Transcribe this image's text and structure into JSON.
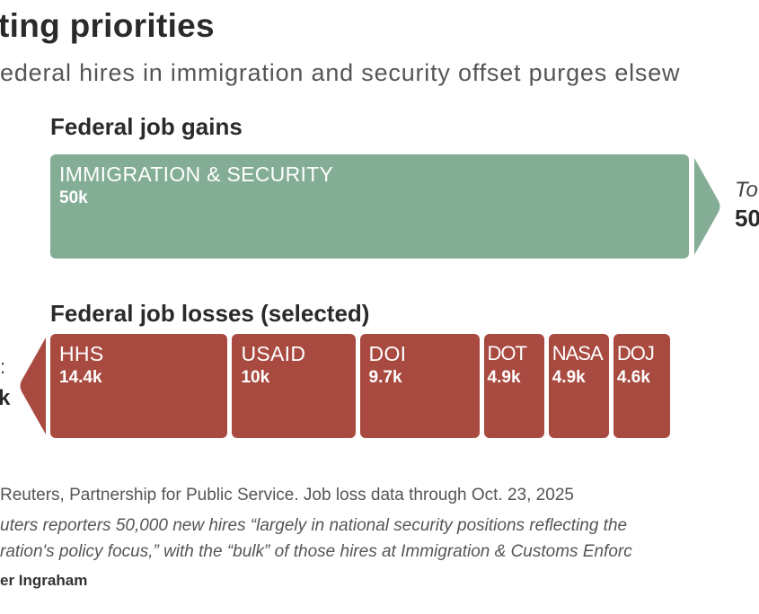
{
  "title": "ting priorities",
  "subtitle": "ederal hires in immigration and security offset purges elsew",
  "gains": {
    "heading": "Federal job gains",
    "total_label": "To",
    "total_value": "50"
  },
  "losses": {
    "heading": "Federal job losses (selected)",
    "total_label": ":",
    "total_value": "k"
  },
  "colors": {
    "gain": "#84ad96",
    "loss": "#a94a40"
  },
  "chart_data": {
    "type": "bar",
    "orientation": "horizontal-stacked",
    "series": [
      {
        "name": "Federal job gains",
        "categories": [
          "IMMIGRATION & SECURITY"
        ],
        "values": [
          50
        ],
        "labels": [
          "50k"
        ]
      },
      {
        "name": "Federal job losses (selected)",
        "categories": [
          "HHS",
          "USAID",
          "DOI",
          "DOT",
          "NASA",
          "DOJ"
        ],
        "values": [
          14.4,
          10,
          9.7,
          4.9,
          4.9,
          4.6
        ],
        "labels": [
          "14.4k",
          "10k",
          "9.7k",
          "4.9k",
          "4.9k",
          "4.6k"
        ]
      }
    ],
    "unit": "thousand jobs"
  },
  "footer": {
    "source": "Reuters, Partnership for Public Service. Job loss data through Oct. 23, 2025",
    "note1": "uters reporters 50,000 new hires “largely in national security positions reflecting the",
    "note2": "ration's policy focus,” with the “bulk” of those hires at Immigration & Customs Enforc",
    "credit": "er Ingraham"
  }
}
